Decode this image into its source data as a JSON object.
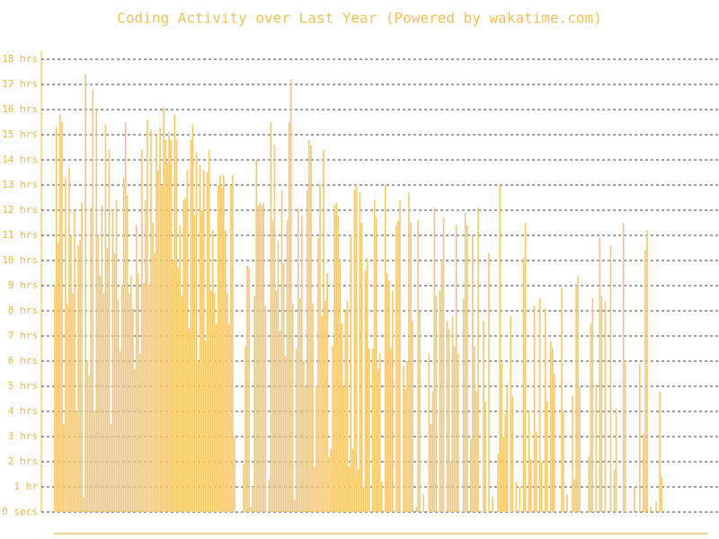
{
  "chart_data": {
    "type": "bar",
    "title": "Coding Activity over Last Year (Powered by wakatime.com)",
    "color": "#f5c870",
    "grid": true,
    "ylim": [
      0,
      18.6
    ],
    "yticks": [
      {
        "value": 0,
        "label": "0 secs"
      },
      {
        "value": 1,
        "label": "1 hr"
      },
      {
        "value": 2,
        "label": "2 hrs"
      },
      {
        "value": 3,
        "label": "3 hrs"
      },
      {
        "value": 4,
        "label": "4 hrs"
      },
      {
        "value": 5,
        "label": "5 hrs"
      },
      {
        "value": 6,
        "label": "6 hrs"
      },
      {
        "value": 7,
        "label": "7 hrs"
      },
      {
        "value": 8,
        "label": "8 hrs"
      },
      {
        "value": 9,
        "label": "9 hrs"
      },
      {
        "value": 10,
        "label": "10 hrs"
      },
      {
        "value": 11,
        "label": "11 hrs"
      },
      {
        "value": 12,
        "label": "12 hrs"
      },
      {
        "value": 13,
        "label": "13 hrs"
      },
      {
        "value": 14,
        "label": "14 hrs"
      },
      {
        "value": 15,
        "label": "15 hrs"
      },
      {
        "value": 16,
        "label": "16 hrs"
      },
      {
        "value": 17,
        "label": "17 hrs"
      },
      {
        "value": 18,
        "label": "18 hrs"
      }
    ],
    "values": [
      9,
      15.3,
      10.7,
      15.8,
      15.5,
      3.5,
      13.3,
      8.3,
      13.7,
      11,
      8.7,
      12,
      4,
      10.6,
      10.8,
      12.3,
      0.6,
      17.4,
      6,
      5.4,
      12.1,
      16.8,
      4,
      16,
      11,
      9.4,
      12.2,
      8.7,
      15.4,
      10.5,
      14.4,
      3.5,
      12,
      10.3,
      12.4,
      8.4,
      6.4,
      9,
      13.3,
      15.5,
      12.6,
      8.7,
      9.4,
      8.1,
      5.7,
      11.4,
      9.5,
      6.3,
      14.4,
      9.1,
      12.4,
      15.6,
      9,
      15.2,
      11.5,
      10.3,
      15,
      13.6,
      15.3,
      13,
      16.1,
      14.8,
      13.9,
      15.1,
      14.8,
      10,
      15.8,
      14.8,
      9.7,
      11.4,
      8.6,
      12.4,
      12.5,
      13.6,
      7.3,
      14.8,
      15.4,
      11.8,
      14.3,
      6,
      13.8,
      12,
      13.6,
      6.8,
      13.5,
      14.4,
      8.8,
      11.2,
      8.7,
      7.5,
      13,
      13.4,
      12.9,
      13.4,
      11.2,
      8.7,
      7.5,
      13,
      13.4,
      3,
      0,
      0,
      0,
      0,
      1.9,
      6.6,
      9.8,
      9.7,
      0.2,
      1,
      8.6,
      14,
      12.2,
      12.3,
      12.2,
      12.3,
      8.2,
      0,
      1.3,
      15.5,
      11.6,
      14.6,
      8.8,
      10.8,
      7.2,
      12.8,
      9.9,
      6.2,
      11.6,
      15.5,
      17.2,
      8.3,
      0.5,
      6.5,
      12.1,
      8.5,
      11.8,
      6,
      5,
      12.8,
      14.8,
      14.6,
      8.3,
      1.8,
      5,
      10.9,
      13,
      7.8,
      14.4,
      8.4,
      9.5,
      2.2,
      2.5,
      6.6,
      12.2,
      12.3,
      11.8,
      10,
      7.5,
      5,
      8,
      8.4,
      1.8,
      11,
      2.5,
      12.8,
      13,
      1.7,
      12.7,
      11.5,
      1,
      9.6,
      10.1,
      6.5,
      0,
      6.5,
      12.4,
      11.7,
      5.7,
      6.3,
      1.2,
      0,
      13,
      9.5,
      9.2,
      6.5,
      8.8,
      0,
      11.4,
      11.6,
      12.4,
      0,
      5.8,
      4.9,
      6,
      12.7,
      11.5,
      7.6,
      0,
      0.2,
      11.6,
      8,
      0,
      0.7,
      0,
      0,
      6.3,
      3.5,
      4.8,
      12.1,
      8.6,
      0,
      8.8,
      10,
      11.7,
      0,
      7.6,
      7.3,
      2,
      7.8,
      6.6,
      11.4,
      6.3,
      0,
      0,
      8.5,
      11.9,
      11.4,
      0,
      2.9,
      11,
      6.6,
      4.8,
      12.1,
      0,
      0,
      7.6,
      4.4,
      0,
      10.3,
      0,
      0.6,
      0,
      0,
      2.3,
      13,
      5.9,
      3,
      3.9,
      5,
      0,
      7.8,
      4.6,
      0,
      1.2,
      0,
      1,
      0,
      10.1,
      11.5,
      0,
      4,
      2.1,
      0,
      8.2,
      3.2,
      0,
      8.5,
      2,
      0,
      8.1,
      4.4,
      0,
      6.8,
      6.5,
      5.5,
      0,
      0,
      0,
      8.9,
      4,
      0,
      0.7,
      0,
      0,
      4.6,
      1.3,
      9,
      9.4,
      5,
      0,
      0,
      0,
      0,
      2.2,
      7.5,
      8.5,
      0,
      5.1,
      0,
      10.9,
      8.6,
      0,
      8.4,
      0,
      0,
      10.6,
      0,
      1.7,
      4.1,
      0,
      0,
      0,
      11.5,
      6,
      0,
      0,
      0,
      0,
      1,
      0,
      0,
      5.9,
      0,
      3.1,
      10.4,
      11.2,
      0,
      0.2,
      0,
      0,
      0.4,
      0,
      4.8,
      1.4,
      0,
      0,
      0,
      0,
      0,
      0,
      0,
      0,
      0,
      0,
      0,
      0,
      0,
      0,
      0,
      0,
      0,
      0,
      0,
      0,
      0,
      0,
      0,
      0,
      0,
      0,
      0,
      0,
      0,
      0
    ]
  }
}
